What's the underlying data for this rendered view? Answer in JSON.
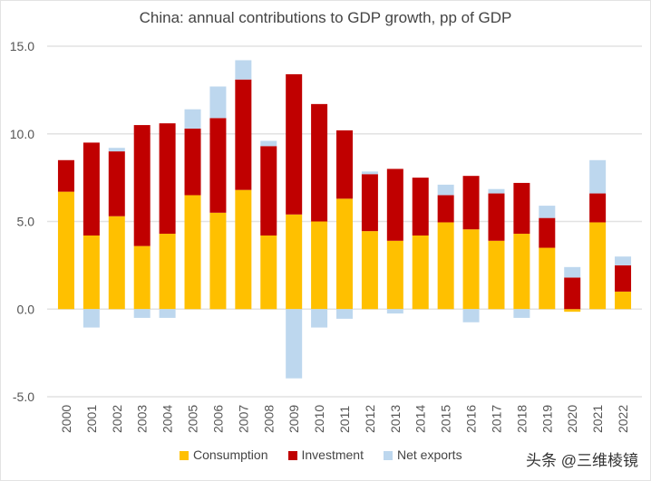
{
  "chart_data": {
    "type": "bar",
    "stacked": true,
    "title": "China: annual contributions to GDP growth, pp of GDP",
    "categories": [
      "2000",
      "2001",
      "2002",
      "2003",
      "2004",
      "2005",
      "2006",
      "2007",
      "2008",
      "2009",
      "2010",
      "2011",
      "2012",
      "2013",
      "2014",
      "2015",
      "2016",
      "2017",
      "2018",
      "2019",
      "2020",
      "2021",
      "2022"
    ],
    "series": [
      {
        "name": "Consumption",
        "color": "#FFC000",
        "values": [
          6.7,
          4.2,
          5.3,
          3.6,
          4.3,
          6.5,
          5.5,
          6.8,
          4.2,
          5.4,
          5.0,
          6.3,
          4.45,
          3.9,
          4.2,
          4.95,
          4.55,
          3.9,
          4.3,
          3.5,
          -0.15,
          4.95,
          1.0
        ]
      },
      {
        "name": "Investment",
        "color": "#C00000",
        "values": [
          1.8,
          5.3,
          3.7,
          6.9,
          6.3,
          3.8,
          5.4,
          6.3,
          5.1,
          8.0,
          6.7,
          3.9,
          3.25,
          4.1,
          3.3,
          1.55,
          3.05,
          2.7,
          2.9,
          1.7,
          1.8,
          1.65,
          1.5
        ]
      },
      {
        "name": "Net exports",
        "color": "#BDD7EE",
        "values": [
          0,
          -1.05,
          0.2,
          -0.5,
          -0.5,
          1.1,
          1.8,
          1.1,
          0.3,
          -3.95,
          -1.05,
          -0.55,
          0.15,
          -0.25,
          0,
          0.6,
          -0.75,
          0.25,
          -0.5,
          0.7,
          0.6,
          1.9,
          0.5
        ]
      }
    ],
    "ylim": [
      -5,
      15
    ],
    "yticks": [
      "15.0",
      "10.0",
      "5.0",
      "0.0",
      "-5.0"
    ],
    "ytick_values": [
      15,
      10,
      5,
      0,
      -5
    ],
    "grid": true,
    "legend": "bottom"
  },
  "watermark": "头条 @三维棱镜"
}
